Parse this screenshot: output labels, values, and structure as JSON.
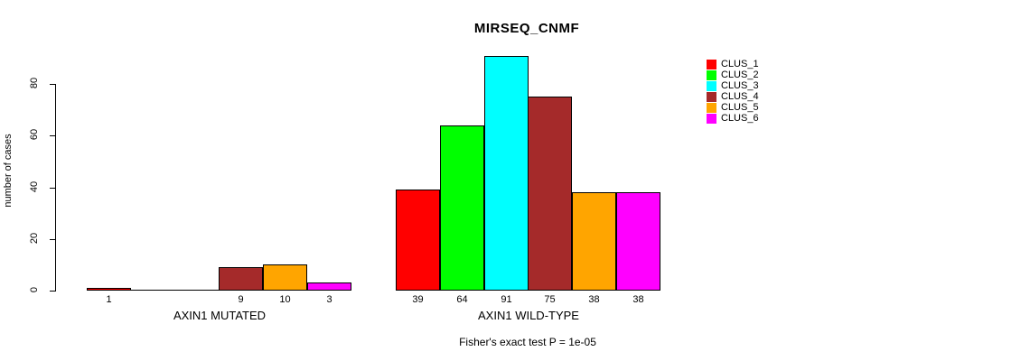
{
  "chart_data": {
    "type": "bar",
    "title": "MIRSEQ_CNMF",
    "ylabel": "number of cases",
    "xlabel": "",
    "ylim": [
      0,
      95
    ],
    "yticks": [
      0,
      20,
      40,
      60,
      80
    ],
    "grid": false,
    "legend_position": "right",
    "categories": [
      "AXIN1 MUTATED",
      "AXIN1 WILD-TYPE"
    ],
    "groups": [
      {
        "label": "AXIN1 MUTATED",
        "values": [
          1,
          0,
          0,
          9,
          10,
          3
        ]
      },
      {
        "label": "AXIN1 WILD-TYPE",
        "values": [
          39,
          64,
          91,
          75,
          38,
          38
        ]
      }
    ],
    "series": [
      {
        "name": "CLUS_1",
        "color": "#FF0000"
      },
      {
        "name": "CLUS_2",
        "color": "#00FF00"
      },
      {
        "name": "CLUS_3",
        "color": "#00FFFF"
      },
      {
        "name": "CLUS_4",
        "color": "#A52A2A"
      },
      {
        "name": "CLUS_5",
        "color": "#FFA500"
      },
      {
        "name": "CLUS_6",
        "color": "#FF00FF"
      }
    ],
    "bar_border_color": "#000000",
    "annotation": "Fisher's exact test P = 1e-05"
  }
}
